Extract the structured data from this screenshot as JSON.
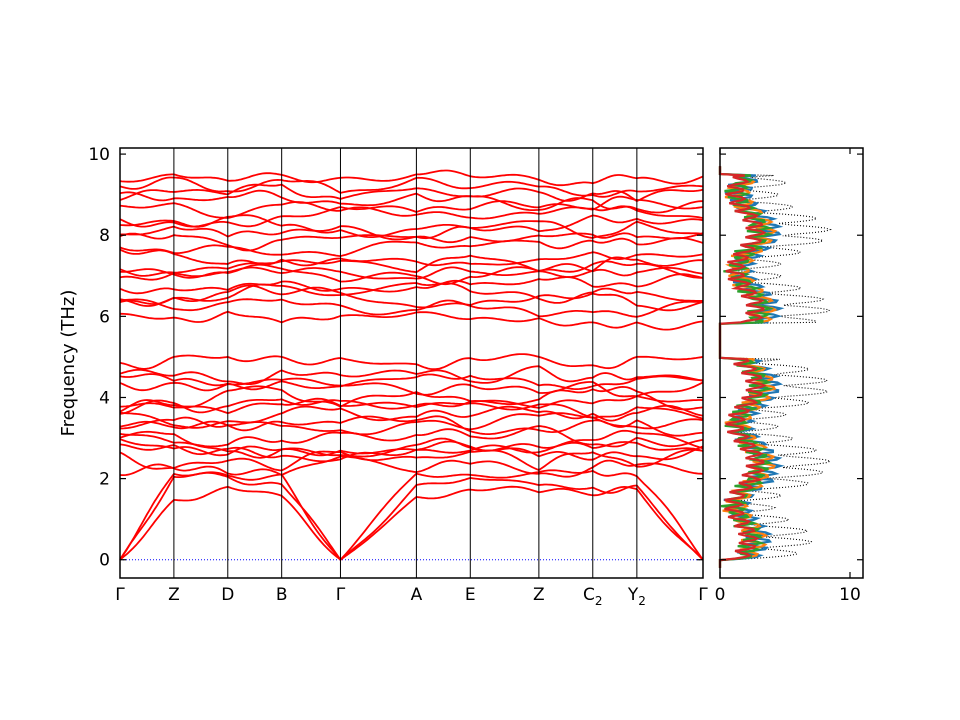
{
  "chart_data": [
    {
      "type": "line",
      "ylabel": "Frequency (THz)",
      "xlabel": "",
      "ylim": [
        -0.45,
        10.15
      ],
      "yticks": [
        0,
        2,
        4,
        6,
        8,
        10
      ],
      "x_tick_labels": [
        {
          "main": "Γ",
          "sub": ""
        },
        {
          "main": "Z",
          "sub": ""
        },
        {
          "main": "D",
          "sub": ""
        },
        {
          "main": "B",
          "sub": ""
        },
        {
          "main": "Γ",
          "sub": ""
        },
        {
          "main": "A",
          "sub": ""
        },
        {
          "main": "E",
          "sub": ""
        },
        {
          "main": "Z",
          "sub": ""
        },
        {
          "main": "C",
          "sub": "2"
        },
        {
          "main": "Y",
          "sub": "2"
        },
        {
          "main": "Γ",
          "sub": ""
        }
      ],
      "x_tick_positions": [
        0,
        0.22,
        0.44,
        0.66,
        0.9,
        1.21,
        1.43,
        1.71,
        1.93,
        2.11,
        2.38
      ],
      "x_range": [
        0,
        2.38
      ],
      "series_color": "#ff0000",
      "zero_line_color": "#0000ff",
      "optical_gap": [
        4.95,
        5.9
      ]
    },
    {
      "type": "line",
      "xlim": [
        0,
        11
      ],
      "xticks": [
        0,
        10
      ],
      "ylim": [
        -0.45,
        10.15
      ],
      "orientation": "horizontal",
      "series": [
        {
          "color": "#000000",
          "style": "dotted"
        },
        {
          "color": "#1f77b4",
          "style": "solid"
        },
        {
          "color": "#ff7f0e",
          "style": "solid"
        },
        {
          "color": "#2ca02c",
          "style": "solid"
        },
        {
          "color": "#d62728",
          "style": "solid"
        }
      ]
    }
  ]
}
